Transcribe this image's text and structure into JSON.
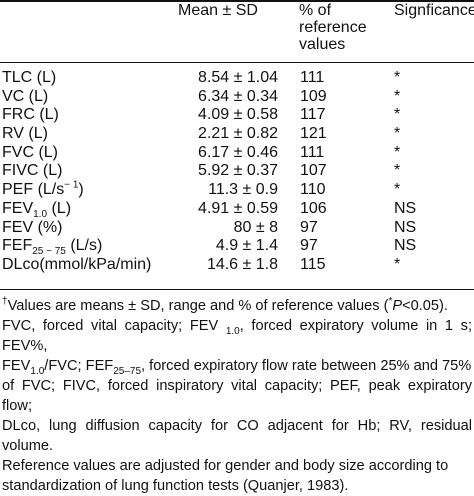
{
  "header": {
    "mean": "Mean ± SD",
    "percent": "% of reference values",
    "significance": "Signficance"
  },
  "rows": [
    {
      "name": "TLC (L)",
      "mean": "8.54 ± 1.04",
      "pct": "111",
      "sig": "*"
    },
    {
      "name": "VC (L)",
      "mean": "6.34 ± 0.34",
      "pct": "109",
      "sig": "*"
    },
    {
      "name": "FRC (L)",
      "mean": "4.09 ± 0.58",
      "pct": "117",
      "sig": "*"
    },
    {
      "name": "RV (L)",
      "mean": "2.21 ± 0.82",
      "pct": "121",
      "sig": "*"
    },
    {
      "name": "FVC (L)",
      "mean": "6.17 ± 0.46",
      "pct": "111",
      "sig": "*"
    },
    {
      "name": "FIVC (L)",
      "mean": "5.92 ± 0.37",
      "pct": "107",
      "sig": "*"
    },
    {
      "name_main": "PEF (L/s",
      "name_sup": "− 1",
      "name_end": ")",
      "mean": "11.3 ± 0.9",
      "pct": "110",
      "sig": "*"
    },
    {
      "name_main": "FEV",
      "name_sub": "1.0",
      "name_end": " (L)",
      "mean": "4.91 ± 0.59",
      "pct": "106",
      "sig": "NS"
    },
    {
      "name": "FEV (%)",
      "mean": "80 ± 8",
      "pct": "97",
      "sig": "NS"
    },
    {
      "name_main": "FEF",
      "name_sub": "25 − 75",
      "name_end": " (L/s)",
      "mean": "4.9 ± 1.4",
      "pct": "97",
      "sig": "NS"
    },
    {
      "name": "DLco(mmol/kPa/min)",
      "mean": "14.6 ± 1.8",
      "pct": "115",
      "sig": "*"
    }
  ],
  "footnote": {
    "dagger": "†",
    "values_text": "Values are means ± SD, range and % of reference values (",
    "star": "*",
    "p_label": "P",
    "p_value": "<0.05).",
    "fvc_text": "FVC, forced vital capacity; FEV ",
    "fev_sub": "1.0",
    "fev_def": ", forced expiratory volume in 1 s; FEV%,",
    "fev2_main": "FEV",
    "fev2_sub": "1.0",
    "fev2_text": "/FVC; FEF",
    "fef_sub": "25–75",
    "fef_def": ", forced expiratory flow rate between 25% and 75%",
    "line4": "of FVC; FIVC, forced inspiratory vital capacity; PEF, peak expiratory flow;",
    "line5": "DLco, lung diffusion capacity for CO adjacent for Hb; RV, residual volume.",
    "line6": "Reference values are adjusted for gender and body size according to",
    "line7": "standardization of lung function tests (Quanjer, 1983)."
  }
}
